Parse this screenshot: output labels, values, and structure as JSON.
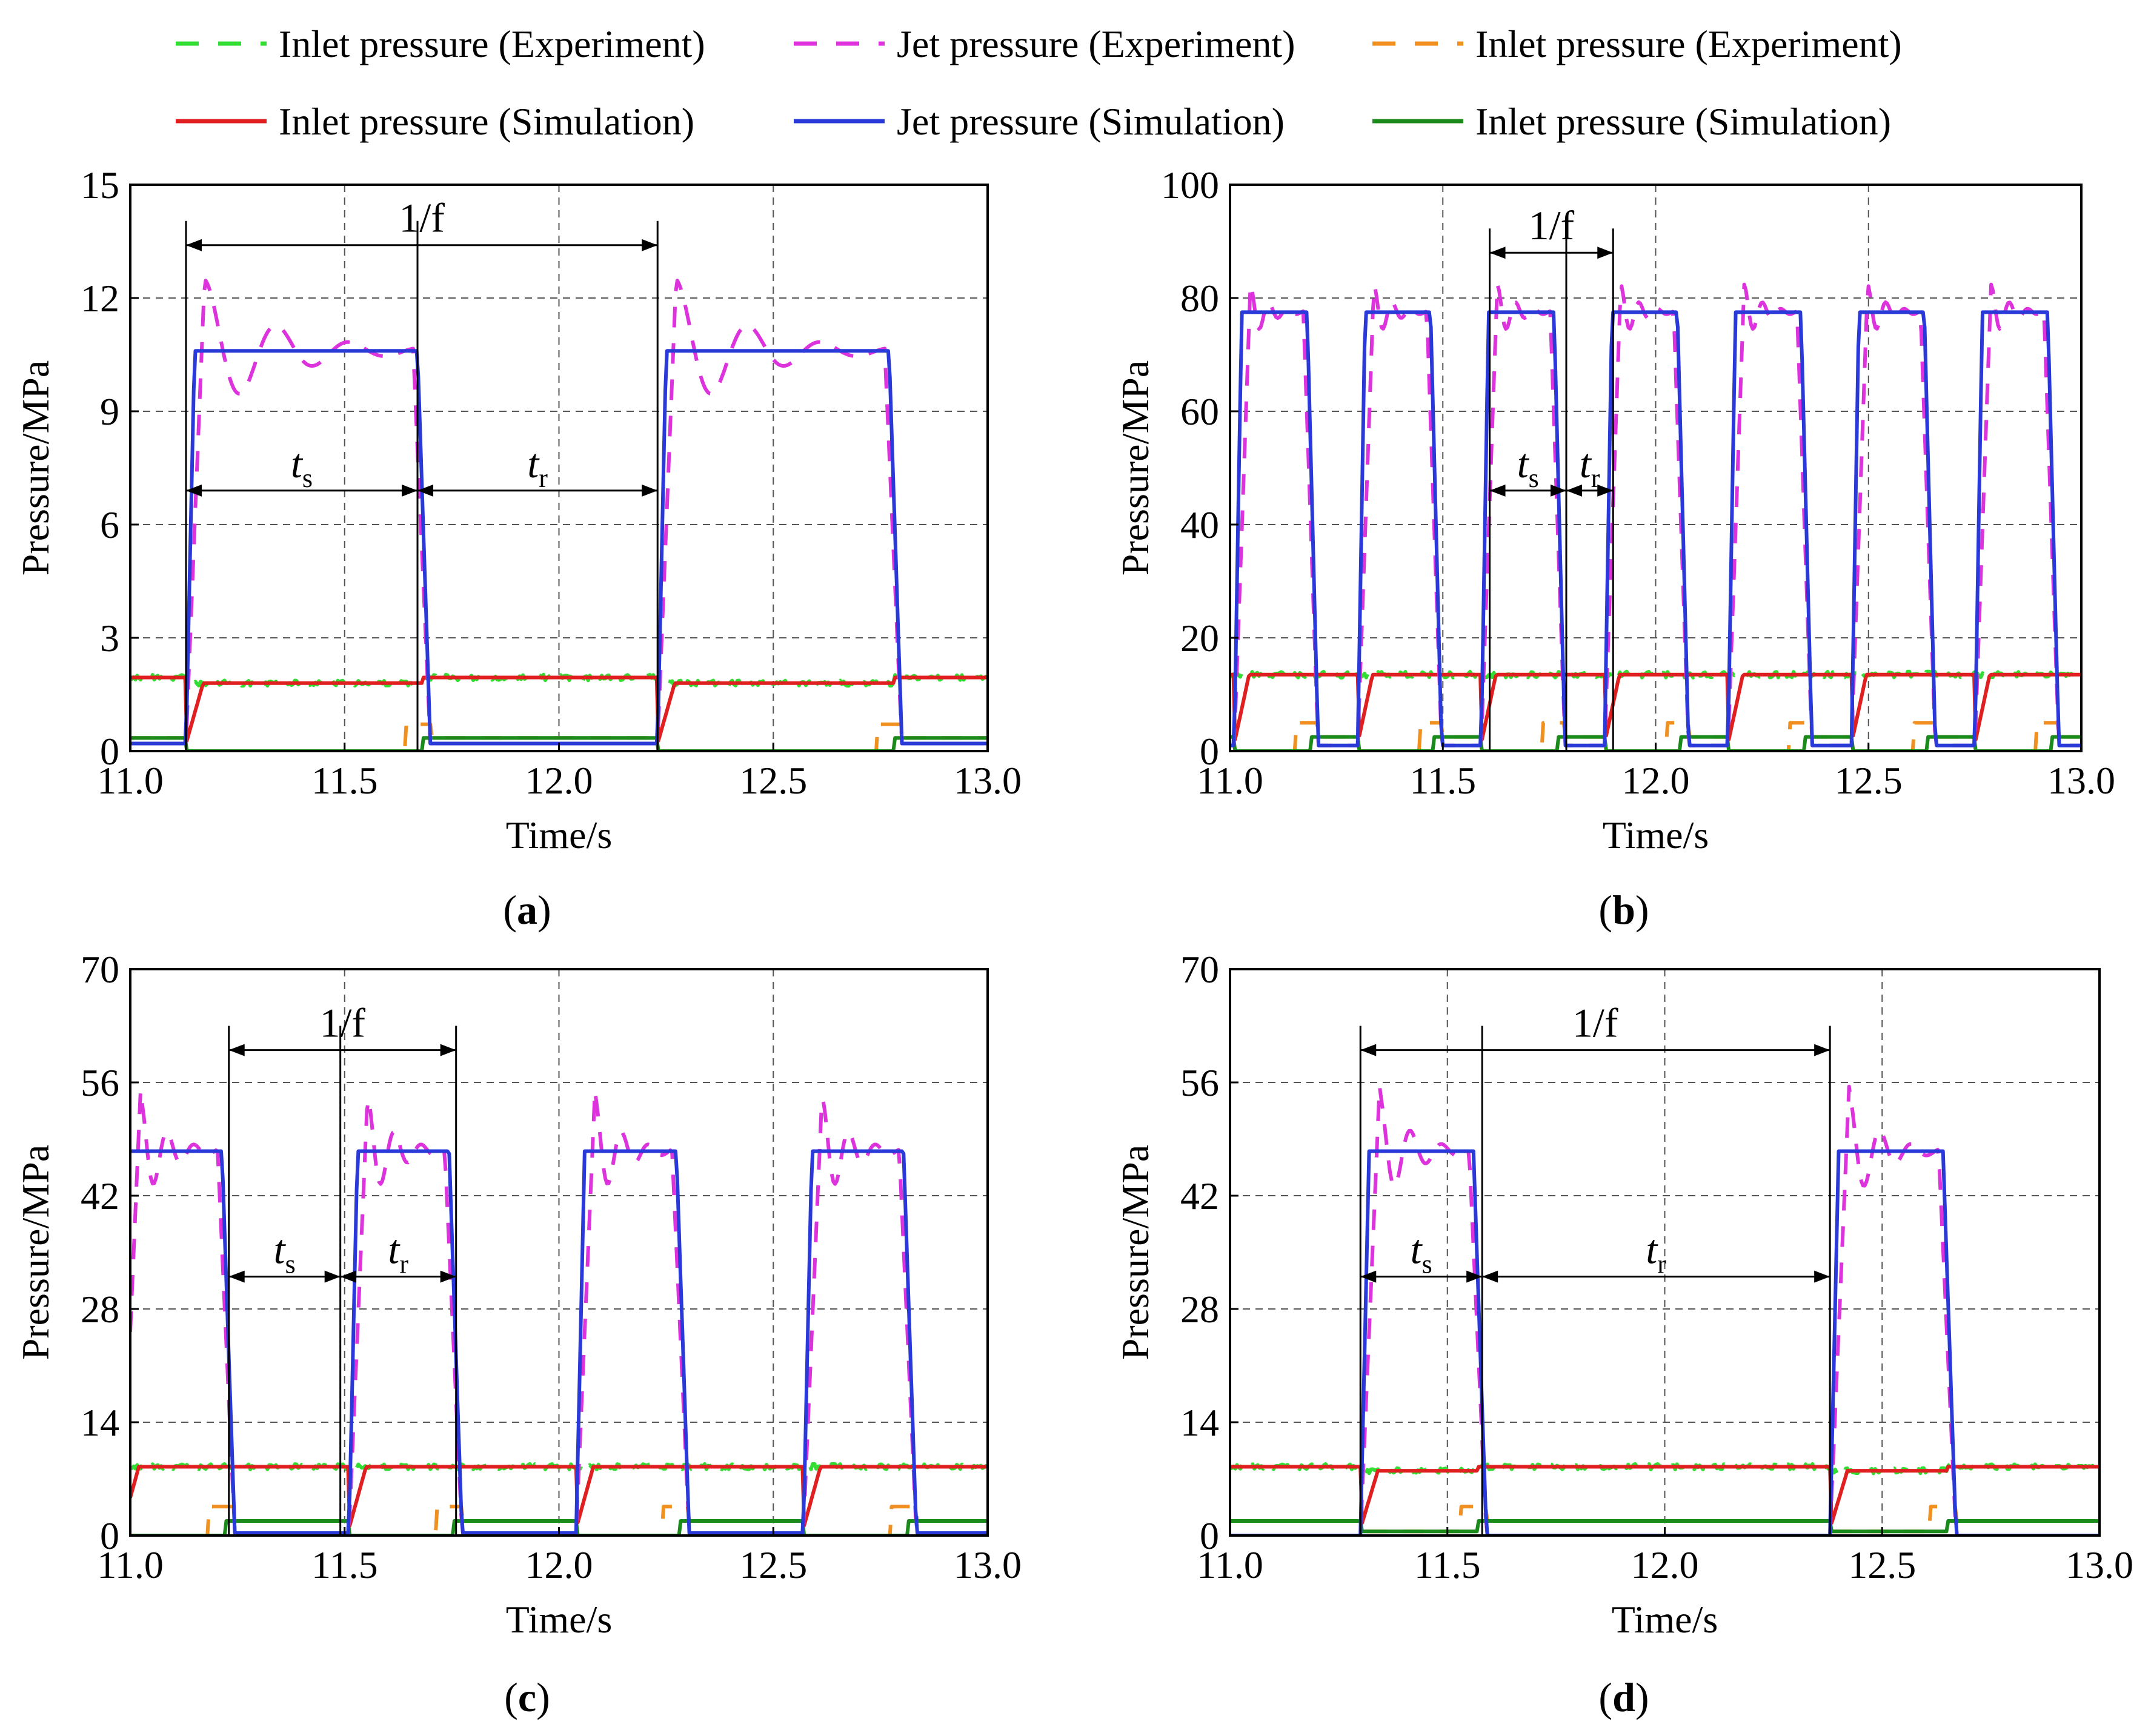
{
  "legend": [
    {
      "label": "Inlet pressure (Experiment)",
      "color": "#33dd33",
      "style": "dashed"
    },
    {
      "label": "Jet pressure (Experiment)",
      "color": "#dd33dd",
      "style": "dashed"
    },
    {
      "label": "Inlet pressure (Experiment)",
      "color": "#f09020",
      "style": "dashed"
    },
    {
      "label": "Inlet pressure (Simulation)",
      "color": "#e02020",
      "style": "solid"
    },
    {
      "label": "Jet pressure (Simulation)",
      "color": "#2a3ad8",
      "style": "solid"
    },
    {
      "label": "Inlet pressure (Simulation)",
      "color": "#1a8a1a",
      "style": "solid"
    }
  ],
  "chart_data": [
    {
      "type": "line",
      "panel_label": "(a)",
      "panel_letter": "a",
      "xlabel": "Time/s",
      "ylabel": "Pressure/MPa",
      "xlim": [
        11.0,
        13.0
      ],
      "ylim": [
        0,
        15
      ],
      "xticks": [
        11.0,
        11.5,
        12.0,
        12.5,
        13.0
      ],
      "xtick_labels": [
        "11.0",
        "11.5",
        "12.0",
        "12.5",
        "13.0"
      ],
      "yticks": [
        0,
        3,
        6,
        9,
        12,
        15
      ],
      "ytick_labels": [
        "0",
        "3",
        "6",
        "9",
        "12",
        "15"
      ],
      "period_start": 11.13,
      "period": 1.1,
      "duty": 0.5,
      "n_pulses": 2,
      "jet_high": 10.6,
      "jet_low": 0.2,
      "jet_peak": 12.7,
      "inlet_during": 1.8,
      "inlet_between": 1.95,
      "low_during": 0.0,
      "low_between": 0.35,
      "ann_period": {
        "x1": 11.13,
        "x2": 12.23,
        "y": 13.4,
        "label": "1/f"
      },
      "ann_ts": {
        "x1": 11.13,
        "x2": 11.67,
        "y": 6.9,
        "label": "t",
        "sub": "s"
      },
      "ann_tr": {
        "x1": 11.67,
        "x2": 12.23,
        "y": 6.9,
        "label": "t",
        "sub": "r"
      }
    },
    {
      "type": "line",
      "panel_label": "(b)",
      "panel_letter": "b",
      "xlabel": "Time/s",
      "ylabel": "Pressure/MPa",
      "xlim": [
        11.0,
        13.0
      ],
      "ylim": [
        0,
        100
      ],
      "xticks": [
        11.0,
        11.5,
        12.0,
        12.5,
        13.0
      ],
      "xtick_labels": [
        "11.0",
        "11.5",
        "12.0",
        "12.5",
        "13.0"
      ],
      "yticks": [
        0,
        20,
        40,
        60,
        80,
        100
      ],
      "ytick_labels": [
        "0",
        "20",
        "40",
        "60",
        "80",
        "100"
      ],
      "period_start": 11.01,
      "period": 0.29,
      "duty": 0.62,
      "n_pulses": 7,
      "jet_high": 77.5,
      "jet_low": 1.0,
      "jet_peak": 83,
      "inlet_during": 13.5,
      "inlet_between": 13.5,
      "low_during": 0.0,
      "low_between": 2.5,
      "ann_period": {
        "x1": 11.61,
        "x2": 11.9,
        "y": 88,
        "label": "1/f"
      },
      "ann_ts": {
        "x1": 11.61,
        "x2": 11.79,
        "y": 46,
        "label": "t",
        "sub": "s"
      },
      "ann_tr": {
        "x1": 11.79,
        "x2": 11.9,
        "y": 46,
        "label": "t",
        "sub": "r"
      }
    },
    {
      "type": "line",
      "panel_label": "(c)",
      "panel_letter": "c",
      "xlabel": "Time/s",
      "ylabel": "Pressure/MPa",
      "xlim": [
        11.0,
        13.0
      ],
      "ylim": [
        0,
        70
      ],
      "xticks": [
        11.0,
        11.5,
        12.0,
        12.5,
        13.0
      ],
      "xtick_labels": [
        "11.0",
        "11.5",
        "12.0",
        "12.5",
        "13.0"
      ],
      "yticks": [
        0,
        14,
        28,
        42,
        56,
        70
      ],
      "ytick_labels": [
        "0",
        "14",
        "28",
        "42",
        "56",
        "70"
      ],
      "period_start": 10.98,
      "period": 0.53,
      "duty": 0.46,
      "n_pulses": 4,
      "jet_high": 47.5,
      "jet_low": 0.3,
      "jet_peak": 55,
      "inlet_during": 8.5,
      "inlet_between": 8.5,
      "low_during": 0.0,
      "low_between": 1.8,
      "ann_period": {
        "x1": 11.23,
        "x2": 11.76,
        "y": 60,
        "label": "1/f"
      },
      "ann_ts": {
        "x1": 11.23,
        "x2": 11.49,
        "y": 32,
        "label": "t",
        "sub": "s"
      },
      "ann_tr": {
        "x1": 11.49,
        "x2": 11.76,
        "y": 32,
        "label": "t",
        "sub": "r"
      }
    },
    {
      "type": "line",
      "panel_label": "(d)",
      "panel_letter": "d",
      "xlabel": "Time/s",
      "ylabel": "Pressure/MPa",
      "xlim": [
        11.0,
        13.0
      ],
      "ylim": [
        0,
        70
      ],
      "xticks": [
        11.0,
        11.5,
        12.0,
        12.5,
        13.0
      ],
      "xtick_labels": [
        "11.0",
        "11.5",
        "12.0",
        "12.5",
        "13.0"
      ],
      "yticks": [
        0,
        14,
        28,
        42,
        56,
        70
      ],
      "ytick_labels": [
        "0",
        "14",
        "28",
        "42",
        "56",
        "70"
      ],
      "period_start": 11.3,
      "period": 1.08,
      "duty": 0.25,
      "n_pulses": 2,
      "jet_high": 47.5,
      "jet_low": 0.0,
      "jet_peak": 55.5,
      "inlet_during": 8.0,
      "inlet_between": 8.5,
      "low_during": 0.5,
      "low_between": 1.8,
      "ann_period": {
        "x1": 11.3,
        "x2": 12.38,
        "y": 60,
        "label": "1/f"
      },
      "ann_ts": {
        "x1": 11.3,
        "x2": 11.58,
        "y": 32,
        "label": "t",
        "sub": "s"
      },
      "ann_tr": {
        "x1": 11.58,
        "x2": 12.38,
        "y": 32,
        "label": "t",
        "sub": "r"
      }
    }
  ]
}
